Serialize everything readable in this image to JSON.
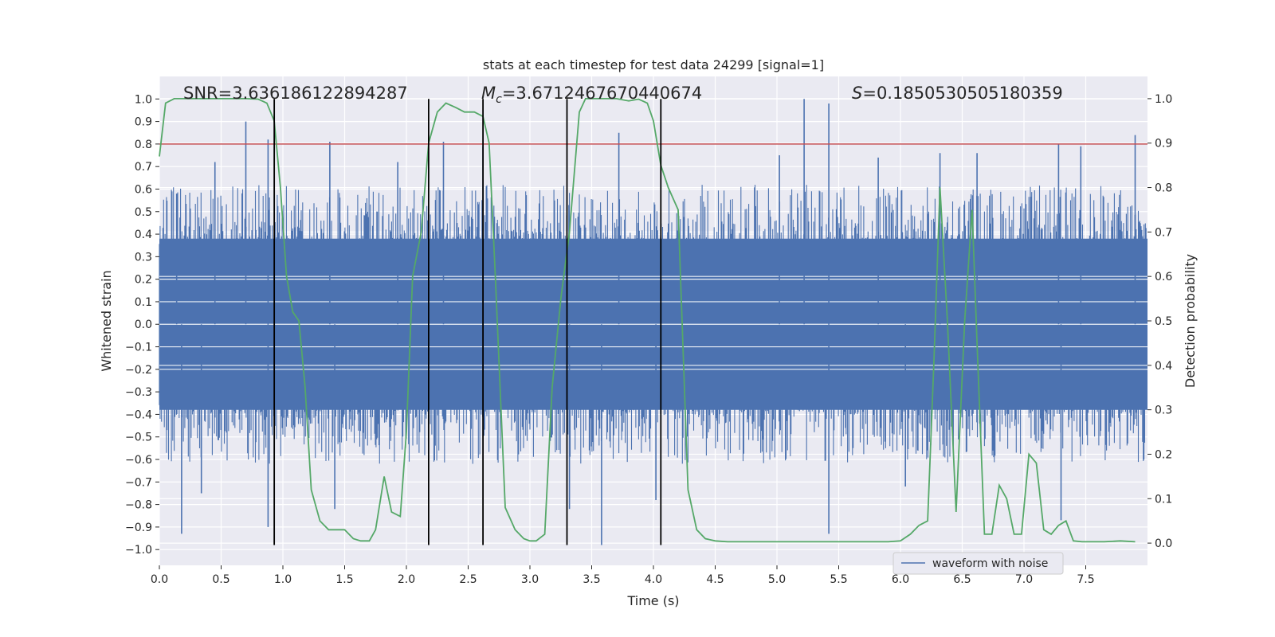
{
  "chart_data": {
    "type": "line",
    "title": "stats at each timestep for test data 24299 [signal=1]",
    "xlabel": "Time (s)",
    "ylabel_left": "Whitened strain",
    "ylabel_right": "Detection probability",
    "xlim": [
      0,
      8
    ],
    "ylim_left": [
      -1.07,
      1.1
    ],
    "ylim_right": [
      -0.05,
      1.05
    ],
    "x_ticks": [
      0.0,
      0.5,
      1.0,
      1.5,
      2.0,
      2.5,
      3.0,
      3.5,
      4.0,
      4.5,
      5.0,
      5.5,
      6.0,
      6.5,
      7.0,
      7.5
    ],
    "y_ticks_left": [
      -1.0,
      -0.9,
      -0.8,
      -0.7,
      -0.6,
      -0.5,
      -0.4,
      -0.3,
      -0.2,
      -0.1,
      0.0,
      0.1,
      0.2,
      0.3,
      0.4,
      0.5,
      0.6,
      0.7,
      0.8,
      0.9,
      1.0
    ],
    "y_ticks_right": [
      0.0,
      0.1,
      0.2,
      0.3,
      0.4,
      0.5,
      0.6,
      0.7,
      0.8,
      0.9,
      1.0
    ],
    "threshold": 0.8,
    "threshold_color": "#c44e52",
    "waveform_color": "#4c72b0",
    "probability_color": "#55a868",
    "event_color": "#000000",
    "vertical_lines": [
      0.93,
      2.18,
      2.62,
      3.3,
      4.06
    ],
    "vertical_line_range": [
      -0.98,
      1.0
    ],
    "stats": {
      "snr": "SNR=3.636186122894287",
      "mc_symbol": "M",
      "mc_subscript": "c",
      "mc_value": "=3.6712467670440674",
      "s_symbol": "S",
      "s_value": "=0.1850530505180359"
    },
    "legend": [
      "waveform with noise"
    ],
    "series": [
      {
        "name": "waveform with noise",
        "axis": "left",
        "description": "dense noisy whitened strain, ~0.4 typical amplitude",
        "spikes": [
          [
            0.18,
            -0.93
          ],
          [
            0.14,
            0.58
          ],
          [
            0.34,
            -0.75
          ],
          [
            0.45,
            0.72
          ],
          [
            0.7,
            0.9
          ],
          [
            0.88,
            -0.9
          ],
          [
            0.88,
            0.82
          ],
          [
            1.38,
            0.81
          ],
          [
            1.42,
            -0.82
          ],
          [
            1.93,
            0.72
          ],
          [
            2.3,
            0.81
          ],
          [
            2.62,
            0.79
          ],
          [
            3.32,
            -0.82
          ],
          [
            3.58,
            -0.98
          ],
          [
            3.72,
            0.85
          ],
          [
            4.02,
            -0.78
          ],
          [
            5.02,
            0.75
          ],
          [
            5.22,
            1.0
          ],
          [
            5.42,
            0.98
          ],
          [
            5.42,
            -0.93
          ],
          [
            5.82,
            0.74
          ],
          [
            6.04,
            -0.72
          ],
          [
            6.32,
            0.76
          ],
          [
            6.62,
            0.76
          ],
          [
            7.28,
            0.8
          ],
          [
            7.3,
            -0.87
          ],
          [
            7.46,
            0.79
          ],
          [
            7.9,
            0.84
          ]
        ]
      },
      {
        "name": "detection probability",
        "axis": "right",
        "x": [
          0.0,
          0.05,
          0.12,
          0.2,
          0.3,
          0.4,
          0.5,
          0.6,
          0.7,
          0.8,
          0.87,
          0.93,
          0.98,
          1.03,
          1.08,
          1.13,
          1.18,
          1.23,
          1.3,
          1.37,
          1.43,
          1.5,
          1.57,
          1.63,
          1.7,
          1.75,
          1.82,
          1.88,
          1.95,
          2.0,
          2.05,
          2.12,
          2.18,
          2.25,
          2.32,
          2.4,
          2.47,
          2.55,
          2.62,
          2.67,
          2.72,
          2.8,
          2.88,
          2.95,
          3.0,
          3.05,
          3.12,
          3.18,
          3.25,
          3.32,
          3.4,
          3.45,
          3.52,
          3.6,
          3.7,
          3.8,
          3.88,
          3.95,
          4.0,
          4.06,
          4.12,
          4.2,
          4.28,
          4.35,
          4.42,
          4.5,
          4.6,
          4.75,
          4.9,
          5.1,
          5.3,
          5.5,
          5.7,
          5.9,
          6.0,
          6.08,
          6.15,
          6.22,
          6.27,
          6.32,
          6.38,
          6.45,
          6.52,
          6.58,
          6.62,
          6.68,
          6.74,
          6.8,
          6.86,
          6.92,
          6.98,
          7.04,
          7.1,
          7.16,
          7.22,
          7.28,
          7.34,
          7.4,
          7.47,
          7.55,
          7.65,
          7.78,
          7.9
        ],
        "values": [
          0.87,
          0.99,
          1.0,
          1.0,
          1.0,
          1.0,
          1.0,
          1.0,
          1.0,
          0.999,
          0.99,
          0.95,
          0.8,
          0.6,
          0.52,
          0.5,
          0.35,
          0.12,
          0.05,
          0.03,
          0.03,
          0.03,
          0.01,
          0.005,
          0.005,
          0.03,
          0.15,
          0.07,
          0.06,
          0.25,
          0.6,
          0.7,
          0.9,
          0.97,
          0.99,
          0.98,
          0.97,
          0.97,
          0.96,
          0.9,
          0.6,
          0.08,
          0.03,
          0.01,
          0.005,
          0.005,
          0.02,
          0.35,
          0.55,
          0.7,
          0.97,
          1.0,
          1.0,
          1.0,
          1.0,
          0.995,
          0.999,
          0.99,
          0.95,
          0.85,
          0.8,
          0.75,
          0.12,
          0.03,
          0.01,
          0.005,
          0.003,
          0.003,
          0.003,
          0.003,
          0.003,
          0.003,
          0.003,
          0.003,
          0.005,
          0.02,
          0.04,
          0.05,
          0.4,
          0.8,
          0.5,
          0.07,
          0.5,
          0.75,
          0.45,
          0.02,
          0.02,
          0.13,
          0.1,
          0.02,
          0.02,
          0.2,
          0.18,
          0.03,
          0.02,
          0.04,
          0.05,
          0.005,
          0.003,
          0.003,
          0.003,
          0.005,
          0.003
        ]
      }
    ]
  }
}
